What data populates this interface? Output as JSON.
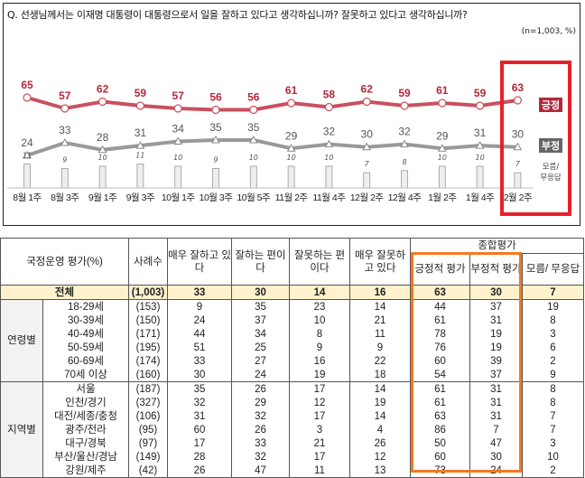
{
  "chart_data": {
    "type": "line",
    "title": "Q. 선생님께서는 이재명 대통령이 대통령으로서 일을 잘하고 있다고 생각하십니까? 잘못하고 있다고 생각하십니까?",
    "note": "(n=1,003, %)",
    "categories": [
      "8월 1주",
      "8월 3주",
      "9월 1주",
      "9월 3주",
      "10월 1주",
      "10월 3주",
      "10월 5주",
      "11월 2주",
      "11월 4주",
      "12월 2주",
      "12월 4주",
      "1월 2주",
      "1월 4주",
      "2월 2주"
    ],
    "series": [
      {
        "name": "긍정",
        "type": "line",
        "color": "#c9505f",
        "values": [
          65,
          57,
          62,
          59,
          57,
          56,
          56,
          61,
          58,
          62,
          59,
          61,
          59,
          63
        ]
      },
      {
        "name": "부정",
        "type": "line",
        "color": "#999999",
        "values": [
          24,
          33,
          28,
          31,
          34,
          35,
          35,
          29,
          32,
          30,
          32,
          29,
          31,
          30
        ]
      },
      {
        "name": "모름/무응답",
        "type": "bar",
        "color": "#eeeeee",
        "values": [
          11,
          9,
          10,
          11,
          10,
          9,
          10,
          10,
          10,
          7,
          8,
          10,
          10,
          7
        ]
      }
    ],
    "highlight": {
      "category": "2월 2주",
      "color": "#e8202a"
    },
    "label_colors": {
      "긍정": "#b3283a",
      "부정": "#666666"
    }
  },
  "table": {
    "header": {
      "category": "국정운영 평가(%)",
      "n": "사례수",
      "c1": "매우 잘하고 있다",
      "c2": "잘하는 편이다",
      "c3": "잘못하는 편이다",
      "c4": "매우 잘못하고 있다",
      "group": "종합평가",
      "pos": "긍정적 평가",
      "neg": "부정적 평가",
      "dk": "모름/ 무응답"
    },
    "total": [
      "전체",
      "(1,003)",
      "33",
      "30",
      "14",
      "16",
      "63",
      "30",
      "7"
    ],
    "groups": [
      {
        "label": "연령별",
        "rows": [
          [
            "18-29세",
            "(153)",
            "9",
            "35",
            "23",
            "14",
            "44",
            "37",
            "19"
          ],
          [
            "30-39세",
            "(150)",
            "24",
            "37",
            "10",
            "21",
            "61",
            "31",
            "8"
          ],
          [
            "40-49세",
            "(171)",
            "44",
            "34",
            "8",
            "11",
            "78",
            "19",
            "3"
          ],
          [
            "50-59세",
            "(195)",
            "51",
            "25",
            "9",
            "9",
            "76",
            "19",
            "6"
          ],
          [
            "60-69세",
            "(174)",
            "33",
            "27",
            "16",
            "22",
            "60",
            "39",
            "2"
          ],
          [
            "70세 이상",
            "(160)",
            "30",
            "24",
            "19",
            "18",
            "54",
            "37",
            "9"
          ]
        ]
      },
      {
        "label": "지역별",
        "rows": [
          [
            "서울",
            "(187)",
            "35",
            "26",
            "17",
            "14",
            "61",
            "31",
            "8"
          ],
          [
            "인천/경기",
            "(327)",
            "32",
            "29",
            "12",
            "19",
            "61",
            "31",
            "8"
          ],
          [
            "대전/세종/충청",
            "(106)",
            "31",
            "32",
            "17",
            "14",
            "63",
            "31",
            "7"
          ],
          [
            "광주/전라",
            "(95)",
            "60",
            "26",
            "3",
            "4",
            "86",
            "7",
            "7"
          ],
          [
            "대구/경북",
            "(97)",
            "17",
            "33",
            "21",
            "26",
            "50",
            "47",
            "3"
          ],
          [
            "부산/울산/경남",
            "(149)",
            "28",
            "32",
            "17",
            "12",
            "60",
            "30",
            "10"
          ],
          [
            "강원/제주",
            "(42)",
            "26",
            "47",
            "11",
            "13",
            "73",
            "24",
            "2"
          ]
        ]
      }
    ],
    "highlight_color": "#f47920"
  }
}
